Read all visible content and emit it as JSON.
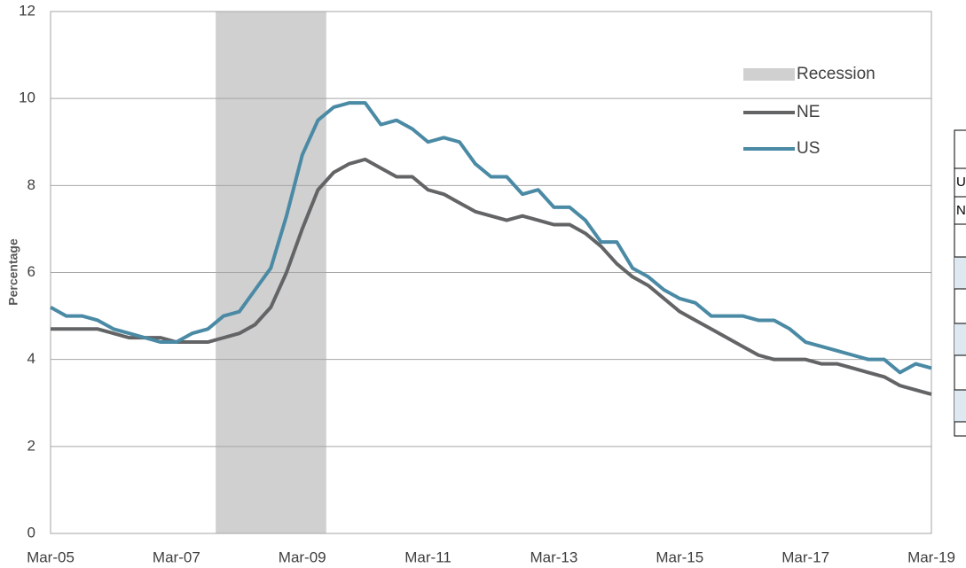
{
  "chart_data": {
    "type": "line",
    "ylabel": "Percentage",
    "categories": [
      "Mar-05",
      null,
      null,
      null,
      null,
      null,
      null,
      null,
      "Mar-07",
      null,
      null,
      null,
      null,
      null,
      null,
      null,
      "Mar-09",
      null,
      null,
      null,
      null,
      null,
      null,
      null,
      "Mar-11",
      null,
      null,
      null,
      null,
      null,
      null,
      null,
      "Mar-13",
      null,
      null,
      null,
      null,
      null,
      null,
      null,
      "Mar-15",
      null,
      null,
      null,
      null,
      null,
      null,
      null,
      "Mar-17",
      null,
      null,
      null,
      null,
      null,
      null,
      null,
      "Mar-19"
    ],
    "series": [
      {
        "name": "Recession",
        "type": "bar",
        "color": "#d0d0d0",
        "values": [
          null,
          null,
          null,
          null,
          null,
          null,
          null,
          null,
          null,
          null,
          null,
          12,
          12,
          12,
          12,
          12,
          12,
          12,
          null,
          null,
          null,
          null,
          null,
          null,
          null,
          null,
          null,
          null,
          null,
          null,
          null,
          null,
          null,
          null,
          null,
          null,
          null,
          null,
          null,
          null,
          null,
          null,
          null,
          null,
          null,
          null,
          null,
          null,
          null,
          null,
          null,
          null,
          null,
          null,
          null,
          null,
          null
        ]
      },
      {
        "name": "NE",
        "type": "line",
        "color": "#636466",
        "values": [
          4.7,
          4.7,
          4.7,
          4.7,
          4.6,
          4.5,
          4.5,
          4.5,
          4.4,
          4.4,
          4.4,
          4.5,
          4.6,
          4.8,
          5.2,
          6.0,
          7.0,
          7.9,
          8.3,
          8.5,
          8.6,
          8.4,
          8.2,
          8.2,
          7.9,
          7.8,
          7.6,
          7.4,
          7.3,
          7.2,
          7.3,
          7.2,
          7.1,
          7.1,
          6.9,
          6.6,
          6.2,
          5.9,
          5.7,
          5.4,
          5.1,
          4.9,
          4.7,
          4.5,
          4.3,
          4.1,
          4.0,
          4.0,
          4.0,
          3.9,
          3.9,
          3.8,
          3.7,
          3.6,
          3.4,
          3.3,
          3.2
        ]
      },
      {
        "name": "US",
        "type": "line",
        "color": "#4a8aa5",
        "values": [
          5.2,
          5.0,
          5.0,
          4.9,
          4.7,
          4.6,
          4.5,
          4.4,
          4.4,
          4.6,
          4.7,
          5.0,
          5.1,
          5.6,
          6.1,
          7.3,
          8.7,
          9.5,
          9.8,
          9.9,
          9.9,
          9.4,
          9.5,
          9.3,
          9.0,
          9.1,
          9.0,
          8.5,
          8.2,
          8.2,
          7.8,
          7.9,
          7.5,
          7.5,
          7.2,
          6.7,
          6.7,
          6.1,
          5.9,
          5.6,
          5.4,
          5.3,
          5.0,
          5.0,
          5.0,
          4.9,
          4.9,
          4.7,
          4.4,
          4.3,
          4.2,
          4.1,
          4.0,
          4.0,
          3.7,
          3.9,
          3.8
        ]
      }
    ],
    "ylim": [
      0,
      12
    ],
    "yticks": [
      0,
      2,
      4,
      6,
      8,
      10,
      12
    ],
    "grid": true,
    "legend": "upper right"
  },
  "table": {
    "rows": [
      [
        "U"
      ],
      [
        "N"
      ]
    ]
  }
}
